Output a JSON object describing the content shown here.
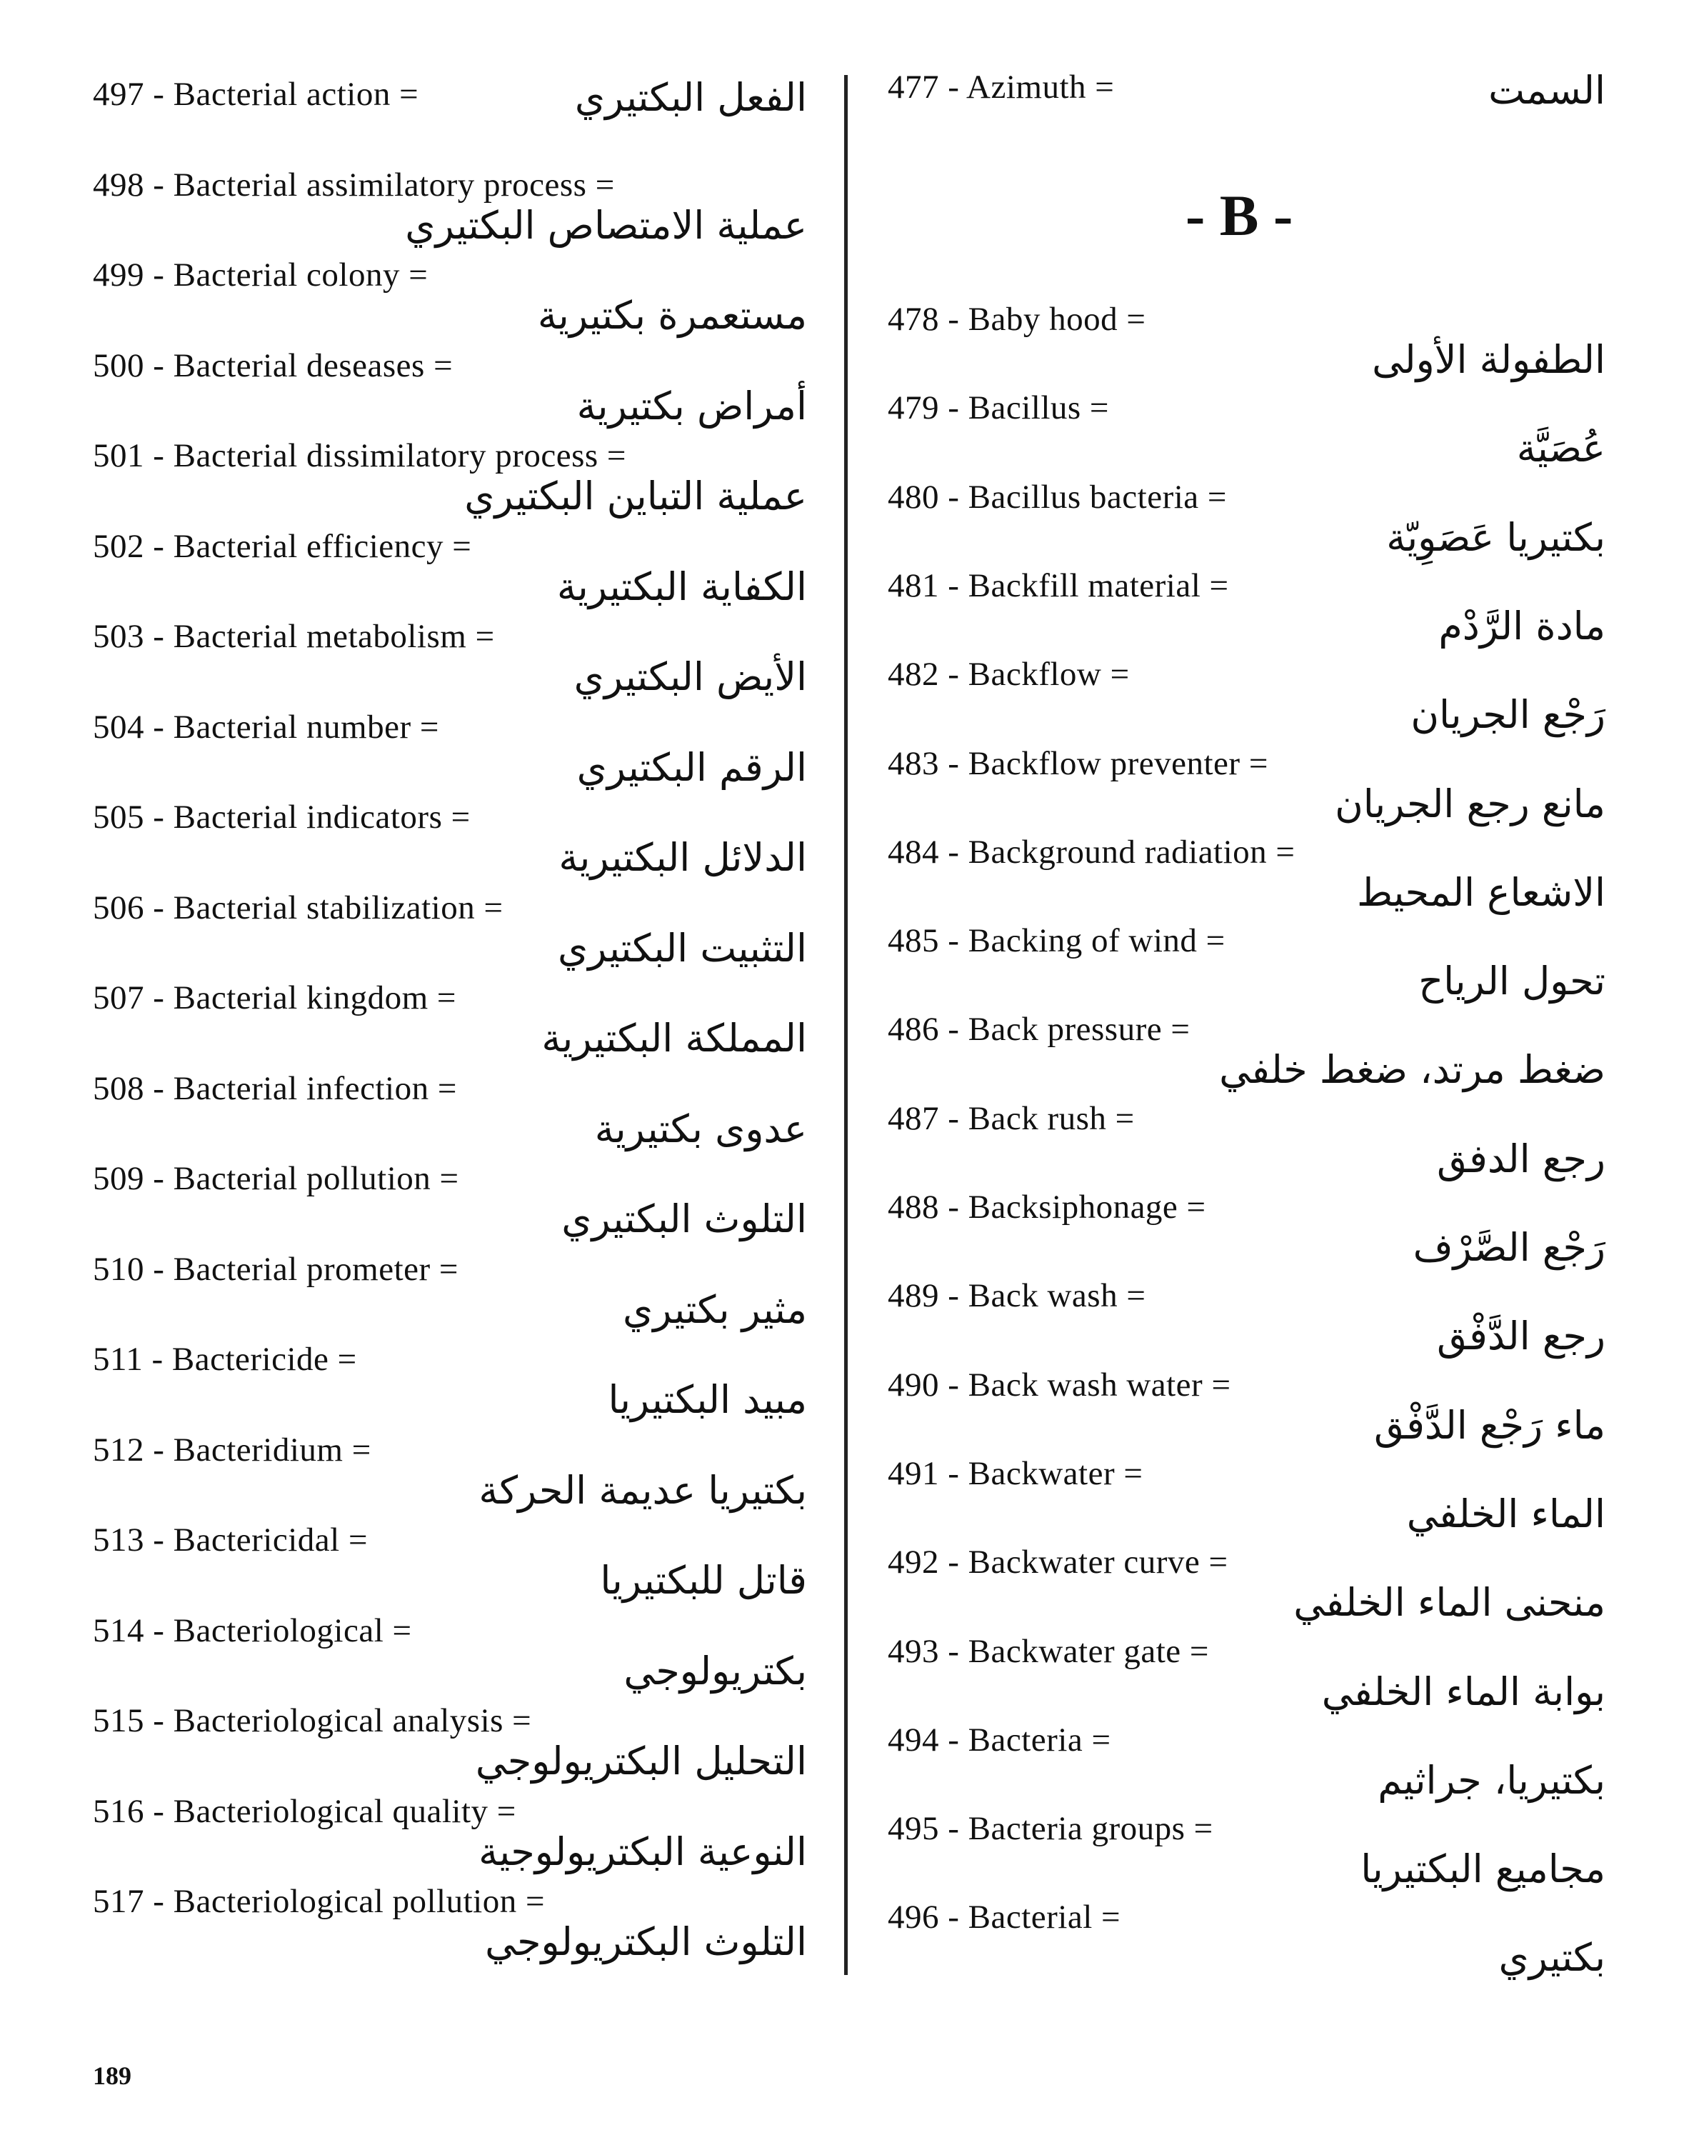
{
  "left_column": [
    {
      "num": "497",
      "term": "Bacterial action",
      "arabic": "الفعل البكتيري",
      "inline": true
    },
    {
      "num": "498",
      "term": "Bacterial assimilatory process",
      "arabic": "عملية الامتصاص البكتيري"
    },
    {
      "num": "499",
      "term": "Bacterial colony",
      "arabic": "مستعمرة بكتيرية"
    },
    {
      "num": "500",
      "term": "Bacterial deseases",
      "arabic": "أمراض بكتيرية"
    },
    {
      "num": "501",
      "term": "Bacterial dissimilatory process",
      "arabic": "عملية التباين البكتيري"
    },
    {
      "num": "502",
      "term": "Bacterial efficiency",
      "arabic": "الكفاية البكتيرية"
    },
    {
      "num": "503",
      "term": "Bacterial metabolism",
      "arabic": "الأيض البكتيري"
    },
    {
      "num": "504",
      "term": "Bacterial number",
      "arabic": "الرقم البكتيري"
    },
    {
      "num": "505",
      "term": "Bacterial indicators",
      "arabic": "الدلائل البكتيرية"
    },
    {
      "num": "506",
      "term": "Bacterial stabilization",
      "arabic": "التثبيت البكتيري"
    },
    {
      "num": "507",
      "term": "Bacterial kingdom",
      "arabic": "المملكة البكتيرية"
    },
    {
      "num": "508",
      "term": "Bacterial infection",
      "arabic": "عدوى بكتيرية"
    },
    {
      "num": "509",
      "term": "Bacterial pollution",
      "arabic": "التلوث البكتيري"
    },
    {
      "num": "510",
      "term": "Bacterial prometer",
      "arabic": "مثير بكتيري"
    },
    {
      "num": "511",
      "term": "Bactericide",
      "arabic": "مبيد البكتيريا"
    },
    {
      "num": "512",
      "term": "Bacteridium",
      "arabic": "بكتيريا عديمة الحركة"
    },
    {
      "num": "513",
      "term": "Bactericidal",
      "arabic": "قاتل للبكتيريا"
    },
    {
      "num": "514",
      "term": "Bacteriological",
      "arabic": "بكتريولوجي"
    },
    {
      "num": "515",
      "term": "Bacteriological analysis",
      "arabic": "التحليل البكتريولوجي"
    },
    {
      "num": "516",
      "term": "Bacteriological quality",
      "arabic": "النوعية البكتريولوجية"
    },
    {
      "num": "517",
      "term": "Bacteriological pollution",
      "arabic": "التلوث البكتريولوجي"
    }
  ],
  "right_top": {
    "num": "477",
    "term": "Azimuth",
    "arabic": "السمت",
    "inline": true
  },
  "section_heading": "- B -",
  "right_column": [
    {
      "num": "478",
      "term": "Baby hood",
      "arabic": "الطفولة الأولى"
    },
    {
      "num": "479",
      "term": "Bacillus",
      "arabic": "عُصَيَّة"
    },
    {
      "num": "480",
      "term": "Bacillus bacteria",
      "arabic": "بكتيريا عَصَوِيّة"
    },
    {
      "num": "481",
      "term": "Backfill material",
      "arabic": "مادة الرَّدْم"
    },
    {
      "num": "482",
      "term": "Backflow",
      "arabic": "رَجْع الجريان"
    },
    {
      "num": "483",
      "term": "Backflow preventer",
      "arabic": "مانع رجع الجريان"
    },
    {
      "num": "484",
      "term": "Background radiation",
      "arabic": "الاشعاع المحيط"
    },
    {
      "num": "485",
      "term": "Backing of wind",
      "arabic": "تحول الرياح"
    },
    {
      "num": "486",
      "term": "Back pressure",
      "arabic": "ضغط مرتد، ضغط خلفي"
    },
    {
      "num": "487",
      "term": "Back rush",
      "arabic": "رجع الدفق"
    },
    {
      "num": "488",
      "term": "Backsiphonage",
      "arabic": "رَجْع الصَّرْف"
    },
    {
      "num": "489",
      "term": "Back wash",
      "arabic": "رجع الدَّفْق"
    },
    {
      "num": "490",
      "term": "Back wash water",
      "arabic": "ماء رَجْع الدَّفْق"
    },
    {
      "num": "491",
      "term": "Backwater",
      "arabic": "الماء الخلفي"
    },
    {
      "num": "492",
      "term": "Backwater curve",
      "arabic": "منحنى الماء الخلفي"
    },
    {
      "num": "493",
      "term": "Backwater gate",
      "arabic": "بوابة الماء الخلفي"
    },
    {
      "num": "494",
      "term": "Bacteria",
      "arabic": "بكتيريا، جراثيم"
    },
    {
      "num": "495",
      "term": "Bacteria groups",
      "arabic": "مجاميع البكتيريا"
    },
    {
      "num": "496",
      "term": "Bacterial",
      "arabic": "بكتيري"
    }
  ],
  "page_number": "189"
}
